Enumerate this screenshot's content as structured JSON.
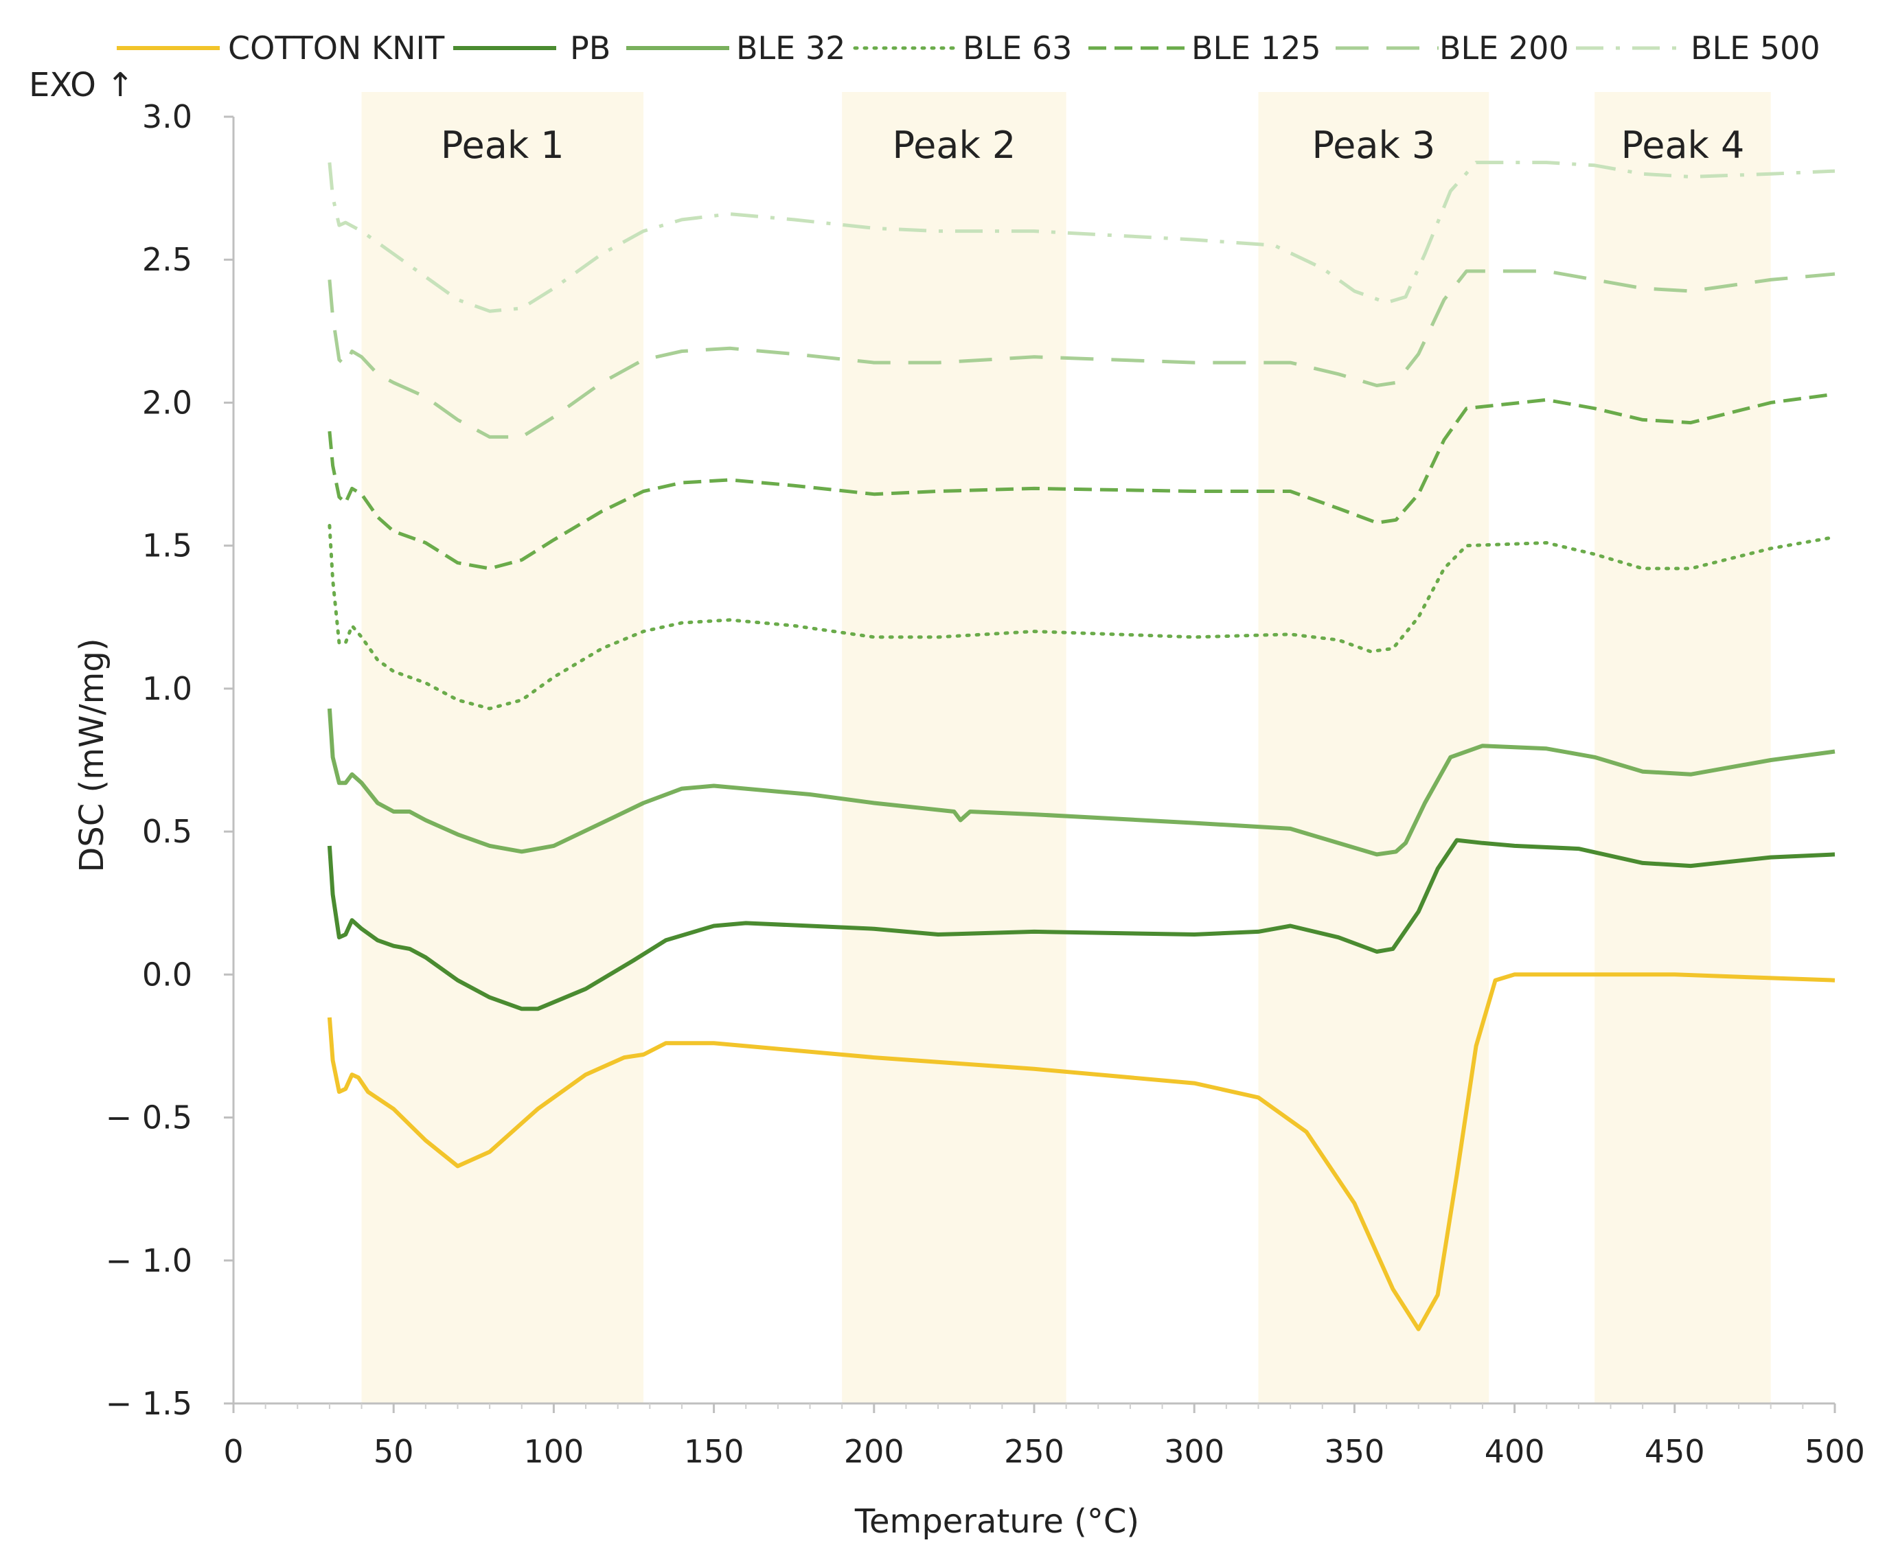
{
  "chart_data": {
    "type": "line",
    "xlabel": "Temperature (°C)",
    "ylabel": "DSC (mW/mg)",
    "exo_label": "EXO ↑",
    "xlim": [
      0,
      500
    ],
    "ylim": [
      -1.5,
      3.0
    ],
    "xticks": [
      0,
      50,
      100,
      150,
      200,
      250,
      300,
      350,
      400,
      450,
      500
    ],
    "yticks": [
      -1.5,
      -1.0,
      -0.5,
      0.0,
      0.5,
      1.0,
      1.5,
      2.0,
      2.5,
      3.0
    ],
    "ytick_labels": [
      "− 1.5",
      "− 1.0",
      "− 0.5",
      "0.0",
      "0.5",
      "1.0",
      "1.5",
      "2.0",
      "2.5",
      "3.0"
    ],
    "legend_position": "top",
    "peak_regions": [
      {
        "label": "Peak 1",
        "range": [
          40,
          128
        ]
      },
      {
        "label": "Peak 2",
        "range": [
          190,
          260
        ]
      },
      {
        "label": "Peak 3",
        "range": [
          320,
          392
        ]
      },
      {
        "label": "Peak 4",
        "range": [
          425,
          480
        ]
      }
    ],
    "series": [
      {
        "name": "COTTON KNIT",
        "color": "#f2c42a",
        "dash": "solid",
        "points": [
          [
            30,
            -0.15
          ],
          [
            31,
            -0.3
          ],
          [
            33,
            -0.41
          ],
          [
            35,
            -0.4
          ],
          [
            37,
            -0.35
          ],
          [
            39,
            -0.36
          ],
          [
            42,
            -0.41
          ],
          [
            50,
            -0.47
          ],
          [
            60,
            -0.58
          ],
          [
            70,
            -0.67
          ],
          [
            80,
            -0.62
          ],
          [
            95,
            -0.47
          ],
          [
            110,
            -0.35
          ],
          [
            122,
            -0.29
          ],
          [
            128,
            -0.28
          ],
          [
            135,
            -0.24
          ],
          [
            150,
            -0.24
          ],
          [
            200,
            -0.29
          ],
          [
            250,
            -0.33
          ],
          [
            300,
            -0.38
          ],
          [
            320,
            -0.43
          ],
          [
            335,
            -0.55
          ],
          [
            350,
            -0.8
          ],
          [
            362,
            -1.1
          ],
          [
            370,
            -1.24
          ],
          [
            376,
            -1.12
          ],
          [
            382,
            -0.7
          ],
          [
            388,
            -0.25
          ],
          [
            394,
            -0.02
          ],
          [
            400,
            0.0
          ],
          [
            450,
            0.0
          ],
          [
            500,
            -0.02
          ]
        ]
      },
      {
        "name": "PB",
        "color": "#4a8b30",
        "dash": "solid",
        "points": [
          [
            30,
            0.45
          ],
          [
            31,
            0.28
          ],
          [
            33,
            0.13
          ],
          [
            35,
            0.14
          ],
          [
            37,
            0.19
          ],
          [
            40,
            0.16
          ],
          [
            45,
            0.12
          ],
          [
            50,
            0.1
          ],
          [
            55,
            0.09
          ],
          [
            60,
            0.06
          ],
          [
            70,
            -0.02
          ],
          [
            80,
            -0.08
          ],
          [
            90,
            -0.12
          ],
          [
            95,
            -0.12
          ],
          [
            110,
            -0.05
          ],
          [
            125,
            0.05
          ],
          [
            135,
            0.12
          ],
          [
            150,
            0.17
          ],
          [
            160,
            0.18
          ],
          [
            180,
            0.17
          ],
          [
            200,
            0.16
          ],
          [
            220,
            0.14
          ],
          [
            250,
            0.15
          ],
          [
            300,
            0.14
          ],
          [
            320,
            0.15
          ],
          [
            330,
            0.17
          ],
          [
            345,
            0.13
          ],
          [
            357,
            0.08
          ],
          [
            362,
            0.09
          ],
          [
            370,
            0.22
          ],
          [
            376,
            0.37
          ],
          [
            382,
            0.47
          ],
          [
            390,
            0.46
          ],
          [
            400,
            0.45
          ],
          [
            420,
            0.44
          ],
          [
            440,
            0.39
          ],
          [
            455,
            0.38
          ],
          [
            480,
            0.41
          ],
          [
            500,
            0.42
          ]
        ]
      },
      {
        "name": "BLE 32",
        "color": "#79b05c",
        "dash": "solid",
        "points": [
          [
            30,
            0.93
          ],
          [
            31,
            0.76
          ],
          [
            33,
            0.67
          ],
          [
            35,
            0.67
          ],
          [
            37,
            0.7
          ],
          [
            40,
            0.67
          ],
          [
            45,
            0.6
          ],
          [
            50,
            0.57
          ],
          [
            55,
            0.57
          ],
          [
            60,
            0.54
          ],
          [
            70,
            0.49
          ],
          [
            80,
            0.45
          ],
          [
            90,
            0.43
          ],
          [
            100,
            0.45
          ],
          [
            115,
            0.53
          ],
          [
            128,
            0.6
          ],
          [
            140,
            0.65
          ],
          [
            150,
            0.66
          ],
          [
            180,
            0.63
          ],
          [
            200,
            0.6
          ],
          [
            225,
            0.57
          ],
          [
            227,
            0.54
          ],
          [
            230,
            0.57
          ],
          [
            250,
            0.56
          ],
          [
            300,
            0.53
          ],
          [
            330,
            0.51
          ],
          [
            345,
            0.46
          ],
          [
            357,
            0.42
          ],
          [
            363,
            0.43
          ],
          [
            366,
            0.46
          ],
          [
            372,
            0.6
          ],
          [
            380,
            0.76
          ],
          [
            390,
            0.8
          ],
          [
            410,
            0.79
          ],
          [
            425,
            0.76
          ],
          [
            440,
            0.71
          ],
          [
            455,
            0.7
          ],
          [
            480,
            0.75
          ],
          [
            500,
            0.78
          ]
        ]
      },
      {
        "name": "BLE 63",
        "color": "#6aab4a",
        "dash": "dotted",
        "points": [
          [
            30,
            1.57
          ],
          [
            31,
            1.38
          ],
          [
            33,
            1.16
          ],
          [
            35,
            1.16
          ],
          [
            37,
            1.22
          ],
          [
            40,
            1.18
          ],
          [
            45,
            1.1
          ],
          [
            50,
            1.06
          ],
          [
            55,
            1.04
          ],
          [
            60,
            1.02
          ],
          [
            70,
            0.96
          ],
          [
            80,
            0.93
          ],
          [
            90,
            0.96
          ],
          [
            100,
            1.04
          ],
          [
            115,
            1.14
          ],
          [
            128,
            1.2
          ],
          [
            140,
            1.23
          ],
          [
            155,
            1.24
          ],
          [
            175,
            1.22
          ],
          [
            200,
            1.18
          ],
          [
            220,
            1.18
          ],
          [
            250,
            1.2
          ],
          [
            300,
            1.18
          ],
          [
            330,
            1.19
          ],
          [
            345,
            1.17
          ],
          [
            355,
            1.13
          ],
          [
            362,
            1.14
          ],
          [
            370,
            1.25
          ],
          [
            378,
            1.42
          ],
          [
            385,
            1.5
          ],
          [
            410,
            1.51
          ],
          [
            425,
            1.47
          ],
          [
            440,
            1.42
          ],
          [
            455,
            1.42
          ],
          [
            480,
            1.49
          ],
          [
            500,
            1.53
          ]
        ]
      },
      {
        "name": "BLE 125",
        "color": "#6aab4a",
        "dash": "dashed",
        "points": [
          [
            30,
            1.9
          ],
          [
            31,
            1.78
          ],
          [
            33,
            1.67
          ],
          [
            35,
            1.65
          ],
          [
            37,
            1.7
          ],
          [
            40,
            1.68
          ],
          [
            45,
            1.6
          ],
          [
            50,
            1.55
          ],
          [
            60,
            1.51
          ],
          [
            70,
            1.44
          ],
          [
            80,
            1.42
          ],
          [
            90,
            1.45
          ],
          [
            100,
            1.52
          ],
          [
            115,
            1.62
          ],
          [
            128,
            1.69
          ],
          [
            140,
            1.72
          ],
          [
            155,
            1.73
          ],
          [
            175,
            1.71
          ],
          [
            200,
            1.68
          ],
          [
            220,
            1.69
          ],
          [
            250,
            1.7
          ],
          [
            300,
            1.69
          ],
          [
            330,
            1.69
          ],
          [
            345,
            1.63
          ],
          [
            357,
            1.58
          ],
          [
            363,
            1.59
          ],
          [
            370,
            1.68
          ],
          [
            378,
            1.87
          ],
          [
            385,
            1.98
          ],
          [
            410,
            2.01
          ],
          [
            425,
            1.98
          ],
          [
            440,
            1.94
          ],
          [
            455,
            1.93
          ],
          [
            480,
            2.0
          ],
          [
            500,
            2.03
          ]
        ]
      },
      {
        "name": "BLE 200",
        "color": "#a8cf95",
        "dash": "longdash",
        "points": [
          [
            30,
            2.43
          ],
          [
            31,
            2.3
          ],
          [
            33,
            2.15
          ],
          [
            35,
            2.13
          ],
          [
            37,
            2.18
          ],
          [
            40,
            2.16
          ],
          [
            45,
            2.1
          ],
          [
            50,
            2.07
          ],
          [
            60,
            2.02
          ],
          [
            70,
            1.94
          ],
          [
            80,
            1.88
          ],
          [
            90,
            1.88
          ],
          [
            100,
            1.95
          ],
          [
            115,
            2.07
          ],
          [
            128,
            2.15
          ],
          [
            140,
            2.18
          ],
          [
            155,
            2.19
          ],
          [
            175,
            2.17
          ],
          [
            200,
            2.14
          ],
          [
            220,
            2.14
          ],
          [
            250,
            2.16
          ],
          [
            300,
            2.14
          ],
          [
            330,
            2.14
          ],
          [
            345,
            2.1
          ],
          [
            357,
            2.06
          ],
          [
            363,
            2.07
          ],
          [
            370,
            2.17
          ],
          [
            378,
            2.36
          ],
          [
            385,
            2.46
          ],
          [
            410,
            2.46
          ],
          [
            425,
            2.43
          ],
          [
            440,
            2.4
          ],
          [
            455,
            2.39
          ],
          [
            480,
            2.43
          ],
          [
            500,
            2.45
          ]
        ]
      },
      {
        "name": "BLE 500",
        "color": "#c7e2bb",
        "dash": "dashdot",
        "points": [
          [
            30,
            2.84
          ],
          [
            31,
            2.72
          ],
          [
            33,
            2.62
          ],
          [
            35,
            2.63
          ],
          [
            40,
            2.6
          ],
          [
            50,
            2.52
          ],
          [
            60,
            2.44
          ],
          [
            70,
            2.36
          ],
          [
            80,
            2.32
          ],
          [
            90,
            2.33
          ],
          [
            100,
            2.4
          ],
          [
            115,
            2.52
          ],
          [
            128,
            2.6
          ],
          [
            140,
            2.64
          ],
          [
            155,
            2.66
          ],
          [
            175,
            2.64
          ],
          [
            200,
            2.61
          ],
          [
            220,
            2.6
          ],
          [
            250,
            2.6
          ],
          [
            300,
            2.57
          ],
          [
            325,
            2.55
          ],
          [
            340,
            2.47
          ],
          [
            350,
            2.39
          ],
          [
            360,
            2.35
          ],
          [
            366,
            2.37
          ],
          [
            372,
            2.52
          ],
          [
            380,
            2.74
          ],
          [
            388,
            2.84
          ],
          [
            410,
            2.84
          ],
          [
            425,
            2.83
          ],
          [
            440,
            2.8
          ],
          [
            455,
            2.79
          ],
          [
            480,
            2.8
          ],
          [
            500,
            2.81
          ]
        ]
      }
    ]
  }
}
